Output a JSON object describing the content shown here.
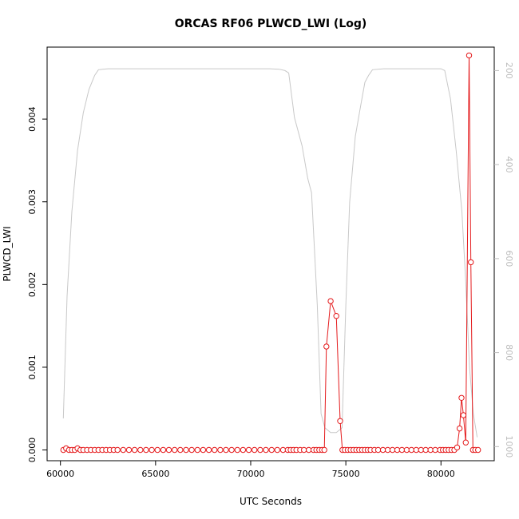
{
  "chart_data": {
    "type": "line",
    "title": "ORCAS RF06 PLWCD_LWI (Log)",
    "xlabel": "UTC Seconds",
    "ylabel": "PLWCD_LWI",
    "xlim": [
      59300,
      82800
    ],
    "ylim": [
      -0.00013,
      0.00487
    ],
    "x_ticks": [
      60000,
      65000,
      70000,
      75000,
      80000
    ],
    "y_ticks": [
      0.0,
      0.001,
      0.002,
      0.003,
      0.004
    ],
    "y_tick_labels": [
      "0.000",
      "0.001",
      "0.002",
      "0.003",
      "0.004"
    ],
    "right_axis": {
      "ylim": [
        1030,
        150
      ],
      "ticks": [
        200,
        400,
        600,
        800,
        1000
      ],
      "tick_labels": [
        "200",
        "400",
        "600",
        "800",
        "1000"
      ],
      "color": "#bdbdbd"
    },
    "colors": {
      "series": "#e41a1c",
      "background_line": "#c8c8c8",
      "axis": "#000000"
    },
    "series": [
      {
        "color": "#e41a1c",
        "markers": "open-circle",
        "x": [
          60150,
          60300,
          60450,
          60600,
          60750,
          60900,
          61050,
          61200,
          61400,
          61600,
          61800,
          62000,
          62200,
          62400,
          62600,
          62800,
          63000,
          63300,
          63600,
          63900,
          64200,
          64500,
          64800,
          65100,
          65400,
          65700,
          66000,
          66300,
          66600,
          66900,
          67200,
          67500,
          67800,
          68100,
          68400,
          68700,
          69000,
          69300,
          69600,
          69900,
          70200,
          70500,
          70800,
          71100,
          71400,
          71700,
          71950,
          72100,
          72250,
          72400,
          72600,
          72800,
          73050,
          73300,
          73450,
          73600,
          73750,
          73870,
          73980,
          74200,
          74500,
          74700,
          74820,
          74950,
          75100,
          75250,
          75400,
          75550,
          75700,
          75850,
          76000,
          76150,
          76300,
          76500,
          76700,
          76950,
          77200,
          77450,
          77700,
          77950,
          78200,
          78450,
          78700,
          78950,
          79200,
          79450,
          79700,
          79950,
          80100,
          80250,
          80400,
          80550,
          80700,
          80850,
          80980,
          81080,
          81180,
          81300,
          81480,
          81570,
          81680,
          81800,
          81950
        ],
        "y": [
          0.0,
          2e-05,
          0.0,
          0.0,
          0.0,
          2e-05,
          0.0,
          0.0,
          0.0,
          0.0,
          0.0,
          0.0,
          0.0,
          0.0,
          0.0,
          0.0,
          0.0,
          0.0,
          0.0,
          0.0,
          0.0,
          0.0,
          0.0,
          0.0,
          0.0,
          0.0,
          0.0,
          0.0,
          0.0,
          0.0,
          0.0,
          0.0,
          0.0,
          0.0,
          0.0,
          0.0,
          0.0,
          0.0,
          0.0,
          0.0,
          0.0,
          0.0,
          0.0,
          0.0,
          0.0,
          0.0,
          0.0,
          0.0,
          0.0,
          0.0,
          0.0,
          0.0,
          0.0,
          0.0,
          0.0,
          0.0,
          0.0,
          0.0,
          0.00125,
          0.0018,
          0.00162,
          0.00035,
          0.0,
          0.0,
          0.0,
          0.0,
          0.0,
          0.0,
          0.0,
          0.0,
          0.0,
          0.0,
          0.0,
          0.0,
          0.0,
          0.0,
          0.0,
          0.0,
          0.0,
          0.0,
          0.0,
          0.0,
          0.0,
          0.0,
          0.0,
          0.0,
          0.0,
          0.0,
          0.0,
          0.0,
          0.0,
          0.0,
          0.0,
          3e-05,
          0.00026,
          0.00063,
          0.00042,
          9e-05,
          0.00477,
          0.00227,
          0.0,
          0.0,
          0.0
        ]
      },
      {
        "color": "#c8c8c8",
        "axis": "right",
        "x": [
          60150,
          60350,
          60600,
          60900,
          61200,
          61500,
          61800,
          62000,
          62500,
          63000,
          64000,
          65000,
          66000,
          67000,
          68000,
          69000,
          70000,
          71000,
          71500,
          71800,
          72000,
          72300,
          72700,
          73000,
          73200,
          73500,
          73700,
          73900,
          74200,
          74500,
          74800,
          75000,
          75200,
          75500,
          75800,
          76000,
          76200,
          76400,
          77000,
          78000,
          79000,
          80000,
          80200,
          80500,
          80800,
          81100,
          81300,
          81500,
          81700,
          81900
        ],
        "y": [
          940,
          680,
          500,
          370,
          290,
          240,
          210,
          198,
          196,
          196,
          196,
          196,
          196,
          196,
          196,
          196,
          196,
          196,
          197,
          200,
          205,
          300,
          360,
          430,
          460,
          700,
          930,
          960,
          970,
          970,
          960,
          700,
          480,
          340,
          270,
          225,
          210,
          198,
          196,
          196,
          196,
          196,
          200,
          260,
          370,
          500,
          650,
          830,
          930,
          980
        ]
      }
    ]
  }
}
